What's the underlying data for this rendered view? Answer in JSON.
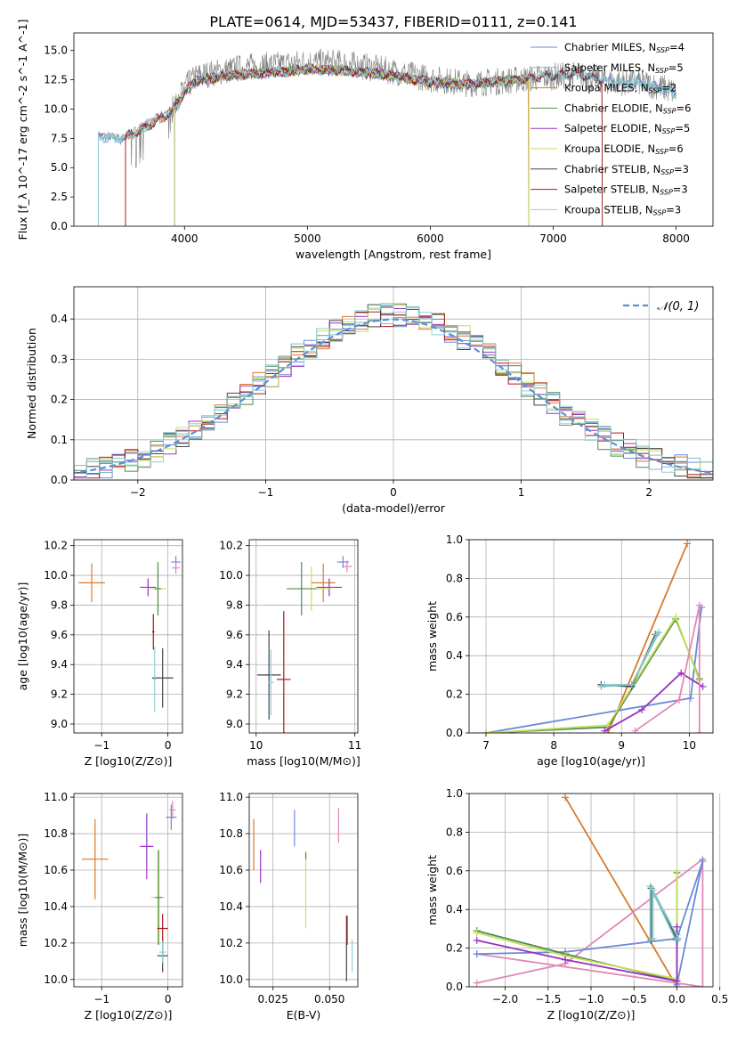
{
  "title": "PLATE=0614, MJD=53437, FIBERID=0111, z=0.141",
  "colors": {
    "chabrier_miles": "#6a8ad8",
    "salpeter_miles": "#7fbfbf",
    "kroupa_miles": "#d97a2a",
    "chabrier_elodie": "#4f8a55",
    "salpeter_elodie": "#9a30c0",
    "kroupa_elodie": "#c6e05a",
    "chabrier_stelib": "#444444",
    "salpeter_stelib": "#b01818",
    "kroupa_stelib": "#8fd0d8",
    "extra_pink": "#e088b8",
    "gaussian": "#5b8fd6",
    "data_gray": "#808080"
  },
  "chart_data": [
    {
      "id": "spectrum",
      "type": "line",
      "xlabel": "wavelength [Angstrom, rest frame]",
      "ylabel": "Flux [f_λ 10^-17 erg cm^-2 s^-1 A^-1]",
      "xlim": [
        3100,
        8300
      ],
      "ylim": [
        0,
        16.5
      ],
      "xticks": [
        4000,
        5000,
        6000,
        7000,
        8000
      ],
      "yticks": [
        0.0,
        2.5,
        5.0,
        7.5,
        10.0,
        12.5,
        15.0
      ],
      "legend": [
        "Chabrier MILES, N_SSP=4",
        "Salpeter MILES, N_SSP=5",
        "Kroupa MILES, N_SSP=2",
        "Chabrier ELODIE, N_SSP=6",
        "Salpeter ELODIE, N_SSP=5",
        "Kroupa ELODIE, N_SSP=6",
        "Chabrier STELIB, N_SSP=3",
        "Salpeter STELIB, N_SSP=3",
        "Kroupa STELIB, N_SSP=3"
      ],
      "legend_position": "top-right",
      "data_continuum": {
        "x": [
          3300,
          3500,
          3700,
          3900,
          4000,
          4100,
          4300,
          4500,
          4800,
          5000,
          5300,
          5600,
          6000,
          6300,
          6600,
          6800,
          7000,
          7200,
          7500,
          7700,
          7900,
          8000
        ],
        "y": [
          7.8,
          7.5,
          8.8,
          10.0,
          11.8,
          12.8,
          13.2,
          13.6,
          13.8,
          14.0,
          13.9,
          13.4,
          12.6,
          12.2,
          12.4,
          12.6,
          12.8,
          12.9,
          12.3,
          12.3,
          11.8,
          11.4
        ]
      },
      "model_continuum": {
        "x": [
          3300,
          3500,
          3700,
          3900,
          4000,
          4100,
          4300,
          4500,
          4800,
          5000,
          5300,
          5600,
          6000,
          6300,
          6600,
          6800,
          7000,
          7200,
          7500,
          7700,
          7900,
          8000
        ],
        "y": [
          7.6,
          7.5,
          8.5,
          9.8,
          11.5,
          12.4,
          12.8,
          13.0,
          13.2,
          13.4,
          13.3,
          13.0,
          12.3,
          12.1,
          12.4,
          12.6,
          12.9,
          13.0,
          12.2,
          12.3,
          11.7,
          11.3
        ]
      }
    },
    {
      "id": "residuals",
      "type": "line",
      "xlabel": "(data-model)/error",
      "ylabel": "Normed distribution",
      "xlim": [
        -2.5,
        2.5
      ],
      "ylim": [
        0,
        0.48
      ],
      "xticks": [
        -2,
        -1,
        0,
        1,
        2
      ],
      "yticks": [
        0.0,
        0.1,
        0.2,
        0.3,
        0.4
      ],
      "legend": [
        "𝒩(0, 1)"
      ],
      "legend_position": "top-right",
      "bin_width": 0.1
    },
    {
      "id": "age_vs_Z",
      "type": "scatter",
      "xlabel": "Z [log10(Z/Z⊙)]",
      "ylabel": "age  [log10(age/yr)]",
      "xlim": [
        -1.42,
        0.22
      ],
      "ylim": [
        8.94,
        10.24
      ],
      "xticks": [
        -1,
        0
      ],
      "xticklabels": [
        "−1",
        "0"
      ],
      "yticks": [
        9.0,
        9.2,
        9.4,
        9.6,
        9.8,
        10.0,
        10.2
      ],
      "points": [
        {
          "c": "kroupa_miles",
          "x": -1.15,
          "y": 9.95,
          "xe": 0.2,
          "ye": 0.13
        },
        {
          "c": "salpeter_elodie",
          "x": -0.3,
          "y": 9.92,
          "xe": 0.12,
          "ye": 0.06
        },
        {
          "c": "kroupa_elodie",
          "x": -0.15,
          "y": 9.91,
          "xe": 0.12,
          "ye": 0.15
        },
        {
          "c": "chabrier_elodie",
          "x": -0.15,
          "y": 9.91,
          "xe": 0.05,
          "ye": 0.18
        },
        {
          "c": "chabrier_miles",
          "x": 0.12,
          "y": 10.09,
          "xe": 0.07,
          "ye": 0.04
        },
        {
          "c": "extra_pink",
          "x": 0.12,
          "y": 10.05,
          "xe": 0.06,
          "ye": 0.04
        },
        {
          "c": "salpeter_stelib",
          "x": -0.22,
          "y": 9.62,
          "xe": 0.02,
          "ye": 0.12
        },
        {
          "c": "chabrier_stelib",
          "x": -0.08,
          "y": 9.31,
          "xe": 0.16,
          "ye": 0.2
        },
        {
          "c": "kroupa_stelib",
          "x": -0.2,
          "y": 9.3,
          "xe": 0.02,
          "ye": 0.22
        }
      ]
    },
    {
      "id": "age_vs_mass",
      "type": "scatter",
      "xlabel": "mass [log10(M/M⊙)]",
      "ylabel": "",
      "xlim": [
        9.93,
        11.03
      ],
      "ylim": [
        8.94,
        10.24
      ],
      "xticks": [
        10,
        11
      ],
      "yticks": [
        9.0,
        9.2,
        9.4,
        9.6,
        9.8,
        10.0,
        10.2
      ],
      "points": [
        {
          "c": "kroupa_miles",
          "x": 10.68,
          "y": 9.95,
          "xe": 0.12,
          "ye": 0.13
        },
        {
          "c": "salpeter_elodie",
          "x": 10.74,
          "y": 9.92,
          "xe": 0.13,
          "ye": 0.06
        },
        {
          "c": "kroupa_elodie",
          "x": 10.56,
          "y": 9.91,
          "xe": 0.2,
          "ye": 0.15
        },
        {
          "c": "chabrier_elodie",
          "x": 10.46,
          "y": 9.91,
          "xe": 0.15,
          "ye": 0.18
        },
        {
          "c": "chabrier_miles",
          "x": 10.88,
          "y": 10.09,
          "xe": 0.06,
          "ye": 0.04
        },
        {
          "c": "extra_pink",
          "x": 10.92,
          "y": 10.06,
          "xe": 0.05,
          "ye": 0.04
        },
        {
          "c": "salpeter_stelib",
          "x": 10.28,
          "y": 9.3,
          "xe": 0.07,
          "ye": 0.46
        },
        {
          "c": "chabrier_stelib",
          "x": 10.13,
          "y": 9.33,
          "xe": 0.12,
          "ye": 0.3
        },
        {
          "c": "kroupa_stelib",
          "x": 10.15,
          "y": 9.28,
          "xe": 0.03,
          "ye": 0.22
        }
      ]
    },
    {
      "id": "weight_vs_age",
      "type": "line",
      "xlabel": "age  [log10(age/yr)]",
      "ylabel": "mass weight",
      "xlim": [
        6.75,
        10.35
      ],
      "ylim": [
        0,
        1.0
      ],
      "xticks": [
        7,
        8,
        9,
        10
      ],
      "yticks": [
        0.0,
        0.2,
        0.4,
        0.6,
        0.8,
        1.0
      ],
      "series": [
        {
          "c": "kroupa_miles",
          "x": [
            8.8,
            9.97
          ],
          "y": [
            0.0,
            0.98
          ]
        },
        {
          "c": "chabrier_miles",
          "x": [
            7.0,
            10.02,
            10.18
          ],
          "y": [
            0.0,
            0.18,
            0.65
          ]
        },
        {
          "c": "chabrier_elodie",
          "x": [
            7.0,
            8.8,
            9.8,
            10.15
          ],
          "y": [
            0.0,
            0.03,
            0.59,
            0.28
          ]
        },
        {
          "c": "kroupa_elodie",
          "x": [
            7.0,
            8.8,
            9.8,
            10.15
          ],
          "y": [
            0.0,
            0.04,
            0.6,
            0.27
          ]
        },
        {
          "c": "salpeter_elodie",
          "x": [
            8.75,
            9.3,
            9.88,
            10.2
          ],
          "y": [
            0.01,
            0.12,
            0.31,
            0.24
          ]
        },
        {
          "c": "extra_pink",
          "x": [
            9.2,
            9.85,
            10.15,
            10.15
          ],
          "y": [
            0.01,
            0.17,
            0.66,
            0.0
          ]
        },
        {
          "c": "chabrier_stelib",
          "x": [
            8.7,
            9.15,
            9.5
          ],
          "y": [
            0.25,
            0.24,
            0.51
          ]
        },
        {
          "c": "kroupa_stelib",
          "x": [
            8.75,
            9.15,
            9.52
          ],
          "y": [
            0.25,
            0.25,
            0.51
          ]
        },
        {
          "c": "salpeter_miles",
          "x": [
            8.7,
            9.15,
            9.55
          ],
          "y": [
            0.24,
            0.25,
            0.52
          ]
        }
      ]
    },
    {
      "id": "mass_vs_Z",
      "type": "scatter",
      "xlabel": "Z [log10(Z/Z⊙)]",
      "ylabel": "mass [log10(M/M⊙)]",
      "xlim": [
        -1.42,
        0.22
      ],
      "ylim": [
        9.96,
        11.02
      ],
      "xticks": [
        -1,
        0
      ],
      "xticklabels": [
        "−1",
        "0"
      ],
      "yticks": [
        10.0,
        10.2,
        10.4,
        10.6,
        10.8,
        11.0
      ],
      "points": [
        {
          "c": "kroupa_miles",
          "x": -1.1,
          "y": 10.66,
          "xe": 0.2,
          "ye": 0.22
        },
        {
          "c": "salpeter_elodie",
          "x": -0.32,
          "y": 10.73,
          "xe": 0.1,
          "ye": 0.18
        },
        {
          "c": "kroupa_elodie",
          "x": -0.15,
          "y": 10.45,
          "xe": 0.1,
          "ye": 0.26
        },
        {
          "c": "chabrier_elodie",
          "x": -0.14,
          "y": 10.45,
          "xe": 0.05,
          "ye": 0.26
        },
        {
          "c": "chabrier_miles",
          "x": 0.05,
          "y": 10.89,
          "xe": 0.08,
          "ye": 0.07
        },
        {
          "c": "extra_pink",
          "x": 0.07,
          "y": 10.93,
          "xe": 0.05,
          "ye": 0.05
        },
        {
          "c": "salpeter_stelib",
          "x": -0.08,
          "y": 10.28,
          "xe": 0.08,
          "ye": 0.08
        },
        {
          "c": "chabrier_stelib",
          "x": -0.08,
          "y": 10.13,
          "xe": 0.08,
          "ye": 0.09
        },
        {
          "c": "kroupa_stelib",
          "x": -0.08,
          "y": 10.15,
          "xe": 0.05,
          "ye": 0.06
        }
      ]
    },
    {
      "id": "mass_vs_EBV",
      "type": "scatter",
      "xlabel": "E(B-V)",
      "ylabel": "",
      "xlim": [
        0.0145,
        0.0625
      ],
      "ylim": [
        9.96,
        11.02
      ],
      "xticks": [
        0.025,
        0.05
      ],
      "xticklabels": [
        "0.025",
        "0.050"
      ],
      "yticks": [
        10.0,
        10.2,
        10.4,
        10.6,
        10.8,
        11.0
      ],
      "segments": [
        {
          "c": "kroupa_miles",
          "x": 0.0165,
          "y0": 10.6,
          "y1": 10.88
        },
        {
          "c": "salpeter_elodie",
          "x": 0.0195,
          "y0": 10.53,
          "y1": 10.71
        },
        {
          "c": "chabrier_miles",
          "x": 0.0345,
          "y0": 10.73,
          "y1": 10.93
        },
        {
          "c": "kroupa_elodie",
          "x": 0.0395,
          "y0": 10.28,
          "y1": 10.7
        },
        {
          "c": "chabrier_elodie",
          "x": 0.0395,
          "y0": 10.66,
          "y1": 10.7
        },
        {
          "c": "extra_pink",
          "x": 0.054,
          "y0": 10.75,
          "y1": 10.94
        },
        {
          "c": "chabrier_stelib",
          "x": 0.0575,
          "y0": 9.99,
          "y1": 10.35
        },
        {
          "c": "salpeter_stelib",
          "x": 0.0578,
          "y0": 10.19,
          "y1": 10.35
        },
        {
          "c": "kroupa_stelib",
          "x": 0.06,
          "y0": 10.04,
          "y1": 10.22
        }
      ]
    },
    {
      "id": "weight_vs_Z",
      "type": "line",
      "xlabel": "Z [log10(Z/Z⊙)]",
      "ylabel": "mass weight",
      "xlim": [
        -2.42,
        0.42
      ],
      "ylim": [
        0,
        1.0
      ],
      "xticks": [
        -2.0,
        -1.5,
        -1.0,
        -0.5,
        0.0,
        0.5
      ],
      "xticklabels": [
        "−2.0",
        "−1.5",
        "−1.0",
        "−0.5",
        "0.0",
        "0.5"
      ],
      "yticks": [
        0.0,
        0.2,
        0.4,
        0.6,
        0.8,
        1.0
      ],
      "series": [
        {
          "c": "kroupa_miles",
          "x": [
            -1.3,
            0.0
          ],
          "y": [
            0.98,
            0.0
          ]
        },
        {
          "c": "extra_pink",
          "x": [
            -2.33,
            -1.3,
            0.3,
            0.3,
            -2.33,
            -2.33
          ],
          "y": [
            0.02,
            0.12,
            0.66,
            0.0,
            0.17,
            0.17
          ]
        },
        {
          "c": "chabrier_miles",
          "x": [
            -2.33,
            -1.3,
            0.0,
            0.3,
            0.0,
            0.0
          ],
          "y": [
            0.17,
            0.18,
            0.25,
            0.65,
            0.01,
            0.27
          ]
        },
        {
          "c": "chabrier_elodie",
          "x": [
            -2.33,
            -1.3,
            0.0,
            0.0
          ],
          "y": [
            0.29,
            0.17,
            0.03,
            0.59
          ]
        },
        {
          "c": "kroupa_elodie",
          "x": [
            -2.33,
            -1.3,
            0.0,
            0.0
          ],
          "y": [
            0.28,
            0.16,
            0.04,
            0.6
          ]
        },
        {
          "c": "salpeter_elodie",
          "x": [
            -2.33,
            -1.3,
            0.0,
            0.0,
            0.0
          ],
          "y": [
            0.24,
            0.14,
            0.03,
            0.31,
            0.24
          ]
        },
        {
          "c": "chabrier_stelib",
          "x": [
            -0.3,
            -0.3,
            0.0
          ],
          "y": [
            0.24,
            0.51,
            0.25
          ]
        },
        {
          "c": "kroupa_stelib",
          "x": [
            -0.28,
            -0.28,
            0.02
          ],
          "y": [
            0.25,
            0.5,
            0.25
          ]
        },
        {
          "c": "salpeter_miles",
          "x": [
            -0.31,
            -0.31,
            -0.01
          ],
          "y": [
            0.24,
            0.52,
            0.24
          ]
        }
      ]
    }
  ]
}
